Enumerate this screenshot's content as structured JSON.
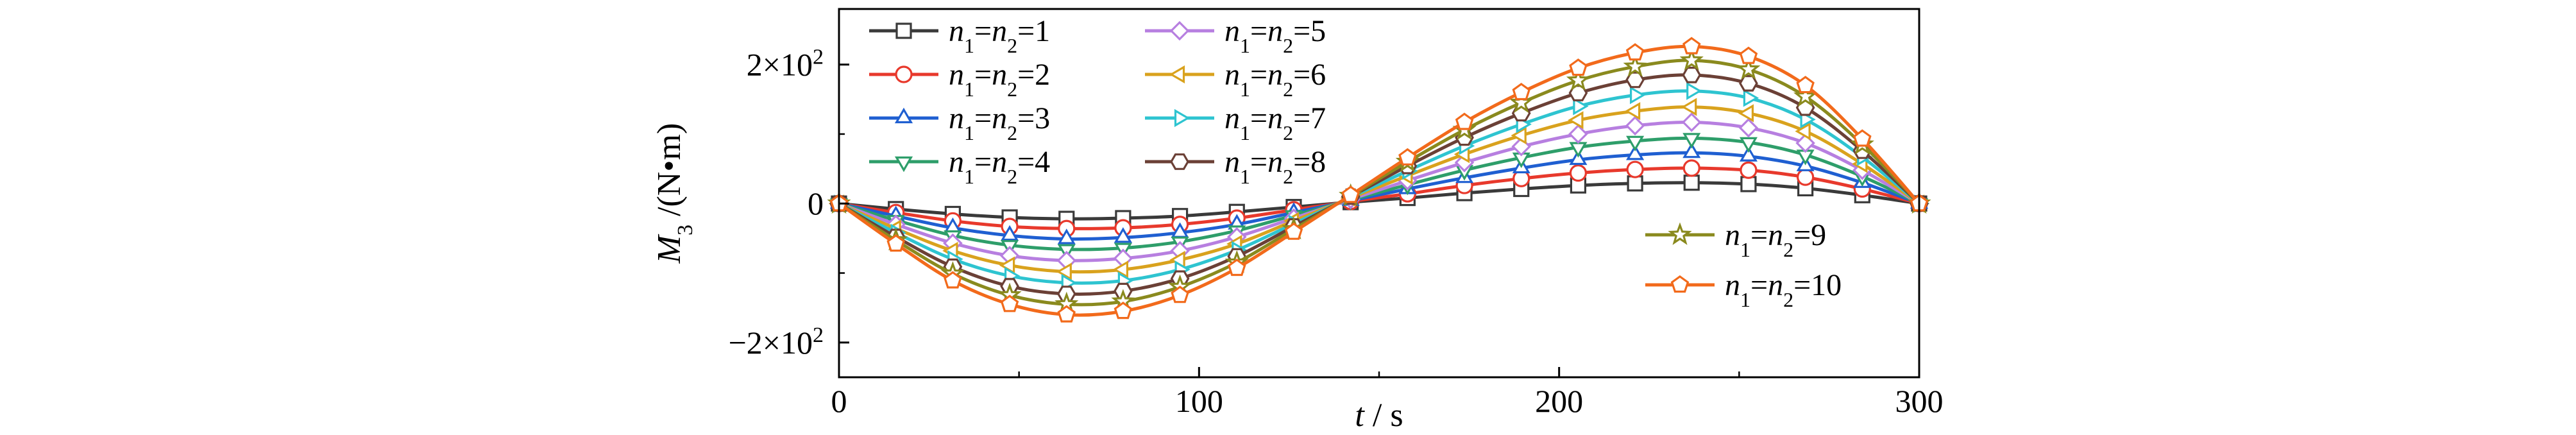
{
  "chart_data": {
    "type": "line",
    "xlabel_var": "t",
    "xlabel_unit": "s",
    "ylabel_var": "M",
    "ylabel_sub": "3",
    "ylabel_unit": "N•m",
    "xlim": [
      0,
      300
    ],
    "ylim": [
      -250,
      280
    ],
    "xticks": [
      {
        "value": 0,
        "label": "0"
      },
      {
        "value": 100,
        "label": "100"
      },
      {
        "value": 200,
        "label": "200"
      },
      {
        "value": 300,
        "label": "300"
      }
    ],
    "yticks": [
      {
        "value": -200,
        "mant": "−2×10",
        "exp": "2"
      },
      {
        "value": 0,
        "mant": "0",
        "exp": ""
      },
      {
        "value": 200,
        "mant": "2×10",
        "exp": "2"
      }
    ],
    "grid": false,
    "legend_placement": "top-left; series 9 and 10 at bottom-right",
    "x": [
      0,
      15.8,
      31.6,
      47.4,
      63.2,
      78.9,
      94.7,
      110.5,
      126.3,
      142.1,
      157.9,
      173.7,
      189.5,
      205.3,
      221.1,
      236.8,
      252.6,
      268.4,
      284.2,
      300
    ],
    "series": [
      {
        "name": "n1=n2=1",
        "label_parts": [
          "n",
          "1",
          "=n",
          "2",
          "=1"
        ],
        "marker": "square",
        "color": "#3a3a3a",
        "values": [
          0,
          -8,
          -15,
          -20,
          -22,
          -21,
          -18,
          -12,
          -5,
          2,
          8,
          15,
          21,
          26,
          29,
          30,
          28,
          22,
          12,
          0
        ]
      },
      {
        "name": "n1=n2=2",
        "label_parts": [
          "n",
          "1",
          "=n",
          "2",
          "=2"
        ],
        "marker": "circle",
        "color": "#e8392c",
        "values": [
          0,
          -13,
          -25,
          -33,
          -36,
          -35,
          -30,
          -21,
          -9,
          3,
          14,
          26,
          36,
          44,
          49,
          51,
          48,
          38,
          21,
          0
        ]
      },
      {
        "name": "n1=n2=3",
        "label_parts": [
          "n",
          "1",
          "=n",
          "2",
          "=3"
        ],
        "marker": "triangle-up",
        "color": "#1f5fd1",
        "values": [
          0,
          -18,
          -35,
          -46,
          -51,
          -49,
          -42,
          -30,
          -13,
          4,
          21,
          37,
          51,
          63,
          70,
          73,
          68,
          54,
          30,
          0
        ]
      },
      {
        "name": "n1=n2=4",
        "label_parts": [
          "n",
          "1",
          "=n",
          "2",
          "=4"
        ],
        "marker": "triangle-down",
        "color": "#2e9e6a",
        "values": [
          0,
          -24,
          -46,
          -60,
          -66,
          -64,
          -55,
          -39,
          -17,
          5,
          27,
          48,
          66,
          81,
          90,
          94,
          88,
          70,
          39,
          0
        ]
      },
      {
        "name": "n1=n2=5",
        "label_parts": [
          "n",
          "1",
          "=n",
          "2",
          "=5"
        ],
        "marker": "diamond",
        "color": "#b77fe0",
        "values": [
          0,
          -30,
          -57,
          -75,
          -82,
          -79,
          -68,
          -48,
          -21,
          6,
          33,
          59,
          82,
          100,
          112,
          117,
          109,
          87,
          48,
          0
        ]
      },
      {
        "name": "n1=n2=6",
        "label_parts": [
          "n",
          "1",
          "=n",
          "2",
          "=6"
        ],
        "marker": "triangle-left",
        "color": "#d9a21d",
        "values": [
          0,
          -36,
          -68,
          -89,
          -98,
          -95,
          -81,
          -58,
          -25,
          8,
          40,
          71,
          98,
          120,
          133,
          139,
          130,
          104,
          57,
          0
        ]
      },
      {
        "name": "n1=n2=7",
        "label_parts": [
          "n",
          "1",
          "=n",
          "2",
          "=7"
        ],
        "marker": "triangle-right",
        "color": "#2ec4d0",
        "values": [
          0,
          -42,
          -80,
          -104,
          -114,
          -111,
          -95,
          -67,
          -29,
          9,
          47,
          83,
          114,
          140,
          156,
          162,
          152,
          121,
          67,
          0
        ]
      },
      {
        "name": "n1=n2=8",
        "label_parts": [
          "n",
          "1",
          "=n",
          "2",
          "=8"
        ],
        "marker": "hexagon",
        "color": "#6b4036",
        "values": [
          0,
          -48,
          -91,
          -119,
          -130,
          -126,
          -108,
          -76,
          -33,
          10,
          54,
          95,
          130,
          159,
          178,
          185,
          173,
          138,
          76,
          0
        ]
      },
      {
        "name": "n1=n2=9",
        "label_parts": [
          "n",
          "1",
          "=n",
          "2",
          "=9"
        ],
        "marker": "star",
        "color": "#8a8a1e",
        "values": [
          0,
          -53,
          -101,
          -132,
          -145,
          -141,
          -120,
          -85,
          -37,
          11,
          60,
          106,
          145,
          177,
          197,
          206,
          193,
          154,
          85,
          0
        ]
      },
      {
        "name": "n1=n2=10",
        "label_parts": [
          "n",
          "1",
          "=n",
          "2",
          "=10"
        ],
        "marker": "pentagon",
        "color": "#f26a1b",
        "values": [
          0,
          -58,
          -111,
          -145,
          -160,
          -155,
          -132,
          -93,
          -41,
          12,
          66,
          117,
          160,
          195,
          217,
          226,
          212,
          170,
          93,
          0
        ]
      }
    ]
  }
}
